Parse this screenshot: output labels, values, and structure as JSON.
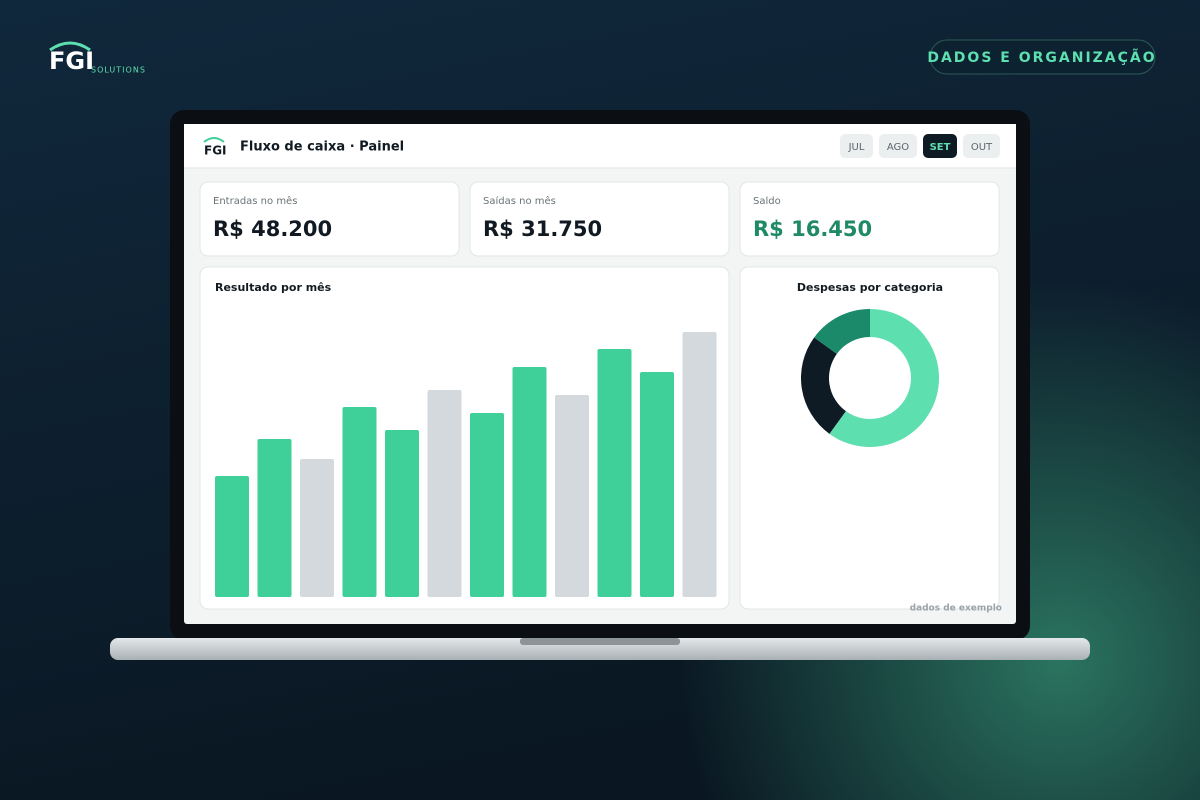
{
  "brand": {
    "name": "FGI",
    "tagline": "SOLUTIONS"
  },
  "badge": "DADOS E ORGANIZAÇÃO",
  "app": {
    "logo": "FGI",
    "title": "Fluxo de caixa · Painel",
    "months": [
      "JUL",
      "AGO",
      "SET",
      "OUT"
    ],
    "selected": 2,
    "kpis": [
      {
        "label": "Entradas no mês",
        "value": "R$ 48.200",
        "color": "#111a22"
      },
      {
        "label": "Saídas no mês",
        "value": "R$ 31.750",
        "color": "#111a22"
      },
      {
        "label": "Saldo",
        "value": "R$ 16.450",
        "color": "#1f8a66"
      }
    ]
  },
  "chart_data": [
    {
      "type": "bar",
      "title": "Resultado por mês",
      "values": [
        121,
        158,
        138,
        190,
        167,
        207,
        184,
        230,
        202,
        248,
        225,
        265
      ],
      "colors": [
        "#3fcf98",
        "#3fcf98",
        "#d3d9dc",
        "#3fcf98",
        "#3fcf98",
        "#d3d9dc",
        "#3fcf98",
        "#3fcf98",
        "#d3d9dc",
        "#3fcf98",
        "#3fcf98",
        "#d3d9dc"
      ]
    },
    {
      "type": "pie",
      "title": "Despesas por categoria",
      "values": [
        60,
        25,
        15
      ],
      "colors": [
        "#5ddfb0",
        "#0e1a24",
        "#1b8a6b"
      ]
    }
  ],
  "footnote": "dados de exemplo"
}
